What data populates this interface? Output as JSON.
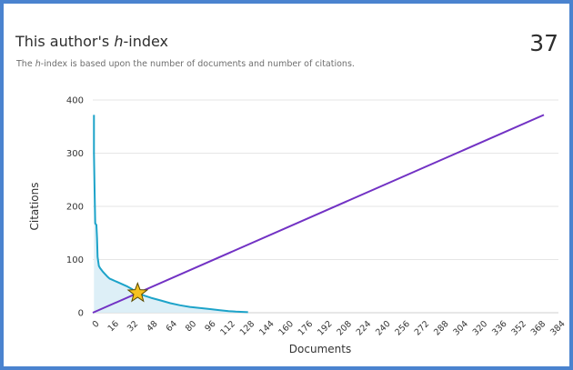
{
  "header": {
    "title_prefix": "This author's ",
    "title_h": "h",
    "title_suffix": "-index",
    "value": "37",
    "subtitle_prefix": "The ",
    "subtitle_h": "h",
    "subtitle_suffix": "-index is based upon the number of documents and number of citations."
  },
  "colors": {
    "citations_line": "#1da3c9",
    "citations_fill": "#d7ecf6",
    "hindex_line": "#7232c4",
    "star_fill": "#f6c11f",
    "star_stroke": "#5a4a00",
    "grid": "#e6e6e6",
    "frame": "#4a83cf"
  },
  "chart_data": {
    "type": "line",
    "xlabel": "Documents",
    "ylabel": "Citations",
    "xlim": [
      0,
      384
    ],
    "ylim": [
      0,
      400
    ],
    "x_ticks": [
      0,
      16,
      32,
      48,
      64,
      80,
      96,
      112,
      128,
      144,
      160,
      176,
      192,
      208,
      224,
      240,
      256,
      272,
      288,
      304,
      320,
      336,
      352,
      368,
      384
    ],
    "y_ticks": [
      0,
      100,
      200,
      300,
      400
    ],
    "grid": true,
    "series": [
      {
        "kind": "citations_per_document",
        "points": [
          [
            1,
            372
          ],
          [
            1,
            300
          ],
          [
            1.5,
            230
          ],
          [
            2,
            168
          ],
          [
            3,
            165
          ],
          [
            3.5,
            140
          ],
          [
            4,
            105
          ],
          [
            5,
            88
          ],
          [
            6,
            84
          ],
          [
            8,
            78
          ],
          [
            10,
            73
          ],
          [
            12,
            68
          ],
          [
            14,
            64
          ],
          [
            16,
            62
          ],
          [
            20,
            58
          ],
          [
            24,
            54
          ],
          [
            28,
            50
          ],
          [
            32,
            45
          ],
          [
            37,
            37
          ],
          [
            40,
            34
          ],
          [
            48,
            28
          ],
          [
            56,
            23
          ],
          [
            64,
            18
          ],
          [
            72,
            14
          ],
          [
            80,
            11
          ],
          [
            88,
            9
          ],
          [
            96,
            7
          ],
          [
            104,
            5
          ],
          [
            112,
            3
          ],
          [
            118,
            2
          ],
          [
            128,
            1
          ]
        ]
      },
      {
        "kind": "h_index_diagonal",
        "points": [
          [
            0,
            0
          ],
          [
            372,
            372
          ]
        ]
      }
    ],
    "h_index_point": [
      37,
      37
    ]
  }
}
